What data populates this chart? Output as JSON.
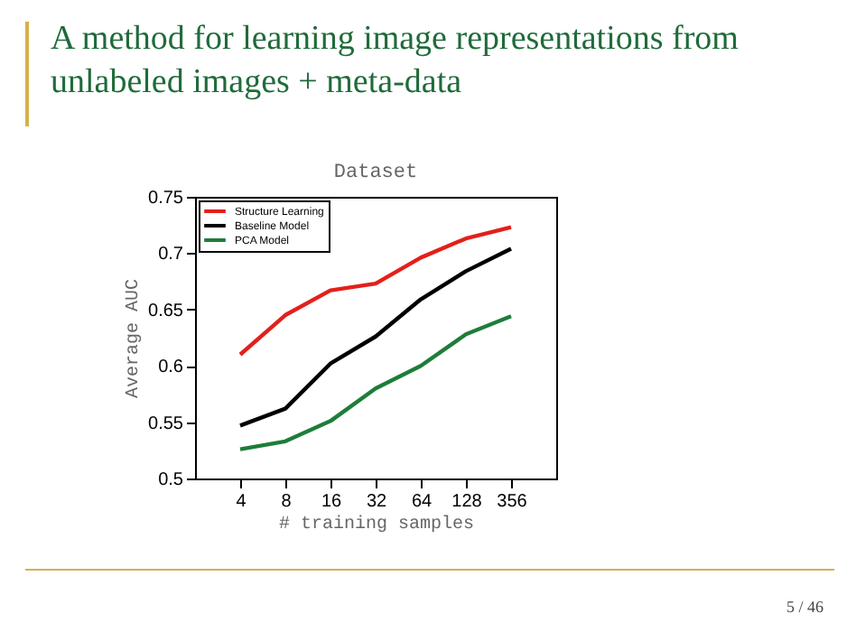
{
  "chart_data": {
    "type": "line",
    "title": "A method for learning image representations from unlabeled images + meta-data",
    "subtitle": "Dataset",
    "xlabel": "# training samples",
    "ylabel": "Average AUC",
    "categories": [
      "4",
      "8",
      "16",
      "32",
      "64",
      "128",
      "356"
    ],
    "series": [
      {
        "name": "Structure Learning",
        "color": "#e3201b",
        "values": [
          0.61,
          0.645,
          0.667,
          0.673,
          0.696,
          0.713,
          0.723
        ]
      },
      {
        "name": "Baseline Model",
        "color": "#000000",
        "values": [
          0.547,
          0.562,
          0.602,
          0.626,
          0.659,
          0.684,
          0.704
        ]
      },
      {
        "name": "PCA Model",
        "color": "#1e7d3a",
        "values": [
          0.526,
          0.533,
          0.551,
          0.58,
          0.6,
          0.628,
          0.644
        ]
      }
    ],
    "ylim": [
      0.5,
      0.75
    ],
    "yticks": [
      0.5,
      0.55,
      0.6,
      0.65,
      0.7,
      0.75
    ],
    "legend": "top left",
    "grid": false,
    "marker": "none",
    "line_style": "solid",
    "annotations": [
      "5 / 46"
    ]
  }
}
